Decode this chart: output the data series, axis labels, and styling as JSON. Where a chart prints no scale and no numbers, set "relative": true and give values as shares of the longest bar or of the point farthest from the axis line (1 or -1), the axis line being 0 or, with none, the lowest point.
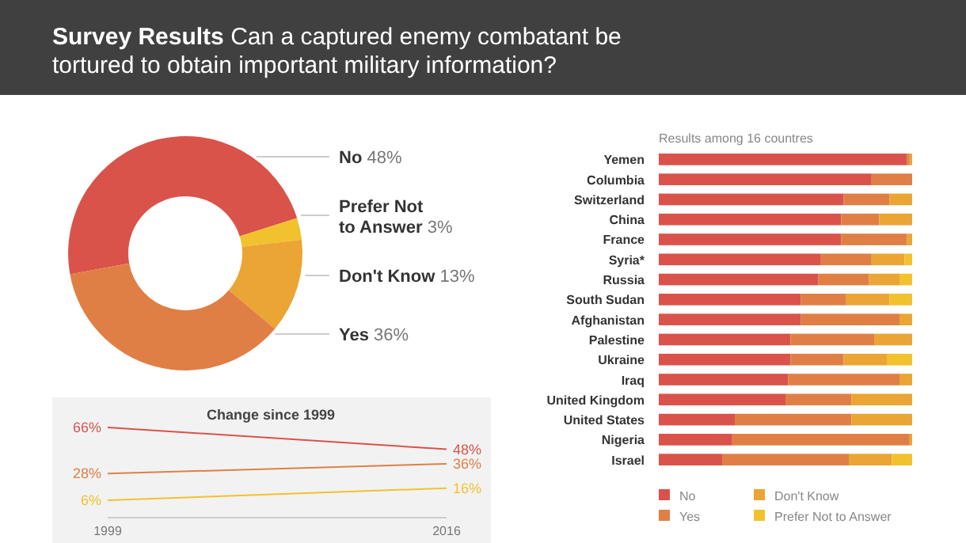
{
  "chart_data": [
    {
      "type": "donut",
      "title": "Survey Results",
      "subtitle": "Can a captured enemy combatant be tortured to obtain important military information?",
      "categories": [
        "No",
        "Prefer Not to Answer",
        "Don't Know",
        "Yes"
      ],
      "values": [
        48,
        3,
        13,
        36
      ],
      "colors": [
        "#d9534a",
        "#f2c12e",
        "#eaa535",
        "#e07f45"
      ],
      "value_labels": [
        "48%",
        "3%",
        "13%",
        "36%"
      ]
    },
    {
      "type": "line",
      "title": "Change since 1999",
      "x": [
        1999,
        2016
      ],
      "xlim": [
        1999,
        2016
      ],
      "xticks": [
        1999,
        2016
      ],
      "series": [
        {
          "color": "#d9534a",
          "values": [
            66,
            48
          ],
          "value_labels": [
            "66%",
            "48%"
          ]
        },
        {
          "color": "#e07f45",
          "values": [
            28,
            36
          ],
          "value_labels": [
            "28%",
            "36%"
          ]
        },
        {
          "color": "#f2c12e",
          "values": [
            6,
            16
          ],
          "value_labels": [
            "6%",
            "16%"
          ]
        }
      ]
    },
    {
      "type": "bar",
      "orientation": "horizontal",
      "stacked": true,
      "relative": true,
      "title": "Results among 16 countres",
      "legend": "bottom",
      "categories": [
        "Yemen",
        "Columbia",
        "Switzerland",
        "China",
        "France",
        "Syria*",
        "Russia",
        "South Sudan",
        "Afghanistan",
        "Palestine",
        "Ukraine",
        "Iraq",
        "United Kingdom",
        "United States",
        "Nigeria",
        "Israel"
      ],
      "series": [
        {
          "name": "No",
          "color": "#d9534a",
          "values": [
            0.98,
            0.84,
            0.73,
            0.72,
            0.72,
            0.64,
            0.63,
            0.56,
            0.56,
            0.52,
            0.52,
            0.51,
            0.5,
            0.3,
            0.29,
            0.25
          ]
        },
        {
          "name": "Yes",
          "color": "#e07f45",
          "values": [
            0.01,
            0.16,
            0.18,
            0.15,
            0.26,
            0.2,
            0.2,
            0.18,
            0.39,
            0.33,
            0.21,
            0.44,
            0.26,
            0.46,
            0.7,
            0.5
          ]
        },
        {
          "name": "Don't Know",
          "color": "#eaa535",
          "values": [
            0.01,
            0,
            0.09,
            0.13,
            0.02,
            0.13,
            0.12,
            0.17,
            0.05,
            0.15,
            0.17,
            0.05,
            0.24,
            0.24,
            0.01,
            0.17
          ]
        },
        {
          "name": "Prefer Not to Answer",
          "color": "#f2c12e",
          "values": [
            0,
            0,
            0,
            0,
            0,
            0.03,
            0.05,
            0.09,
            0,
            0,
            0.1,
            0,
            0,
            0,
            0,
            0.08
          ]
        }
      ]
    }
  ]
}
